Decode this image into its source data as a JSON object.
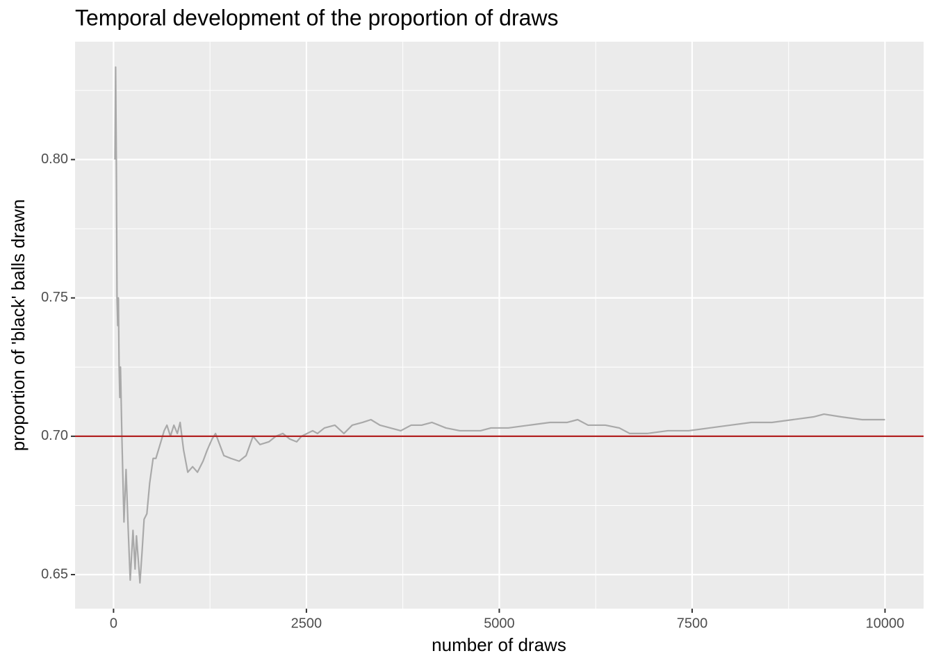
{
  "chart_data": {
    "type": "line",
    "title": "Temporal development of the proportion of draws",
    "x_label": "number of draws",
    "y_label": "proportion of 'black' balls drawn",
    "x": [
      18,
      27,
      36,
      45,
      54,
      63,
      72,
      81,
      90,
      108,
      135,
      162,
      189,
      216,
      252,
      279,
      297,
      324,
      342,
      369,
      396,
      432,
      468,
      513,
      549,
      603,
      656,
      692,
      737,
      782,
      827,
      863,
      908,
      962,
      1025,
      1088,
      1160,
      1214,
      1277,
      1322,
      1376,
      1430,
      1520,
      1628,
      1718,
      1808,
      1898,
      2014,
      2104,
      2194,
      2284,
      2374,
      2437,
      2509,
      2581,
      2644,
      2734,
      2869,
      2986,
      3094,
      3228,
      3336,
      3453,
      3588,
      3723,
      3858,
      3993,
      4128,
      4308,
      4488,
      4757,
      4892,
      5117,
      5387,
      5657,
      5881,
      6016,
      6151,
      6376,
      6556,
      6691,
      6915,
      7185,
      7455,
      7725,
      7995,
      8264,
      8534,
      8804,
      9073,
      9209,
      9433,
      9703,
      10000
    ],
    "values": [
      0.8,
      0.8334,
      0.8,
      0.75,
      0.74,
      0.75,
      0.725,
      0.714,
      0.725,
      0.7,
      0.669,
      0.688,
      0.667,
      0.648,
      0.666,
      0.652,
      0.664,
      0.654,
      0.647,
      0.658,
      0.67,
      0.672,
      0.683,
      0.692,
      0.692,
      0.697,
      0.702,
      0.704,
      0.7,
      0.704,
      0.701,
      0.705,
      0.695,
      0.687,
      0.689,
      0.687,
      0.691,
      0.695,
      0.699,
      0.701,
      0.697,
      0.693,
      0.692,
      0.691,
      0.693,
      0.7,
      0.697,
      0.698,
      0.7,
      0.701,
      0.699,
      0.698,
      0.7,
      0.701,
      0.702,
      0.701,
      0.703,
      0.704,
      0.701,
      0.704,
      0.705,
      0.706,
      0.704,
      0.703,
      0.702,
      0.704,
      0.704,
      0.705,
      0.703,
      0.702,
      0.702,
      0.703,
      0.703,
      0.704,
      0.705,
      0.705,
      0.706,
      0.704,
      0.704,
      0.703,
      0.701,
      0.701,
      0.702,
      0.702,
      0.703,
      0.704,
      0.705,
      0.705,
      0.706,
      0.707,
      0.708,
      0.707,
      0.706,
      0.706
    ],
    "color": "#a9a9a9",
    "hline": {
      "value": 0.7,
      "color": "#b22222"
    },
    "xlim": [
      -499,
      10500
    ],
    "ylim": [
      0.6377,
      0.8426
    ],
    "xticks": [
      0,
      2500,
      5000,
      7500,
      10000
    ],
    "yticks": [
      0.65,
      {
        "value": 0.7,
        "label": "0.70"
      },
      0.75,
      {
        "value": 0.8,
        "label": "0.80"
      }
    ],
    "minor_xticks": [
      1250,
      3750,
      6250,
      8750
    ],
    "minor_yticks": [
      0.675,
      0.725,
      0.775,
      0.825
    ],
    "panel_color": "#ebebeb",
    "grid": true
  }
}
